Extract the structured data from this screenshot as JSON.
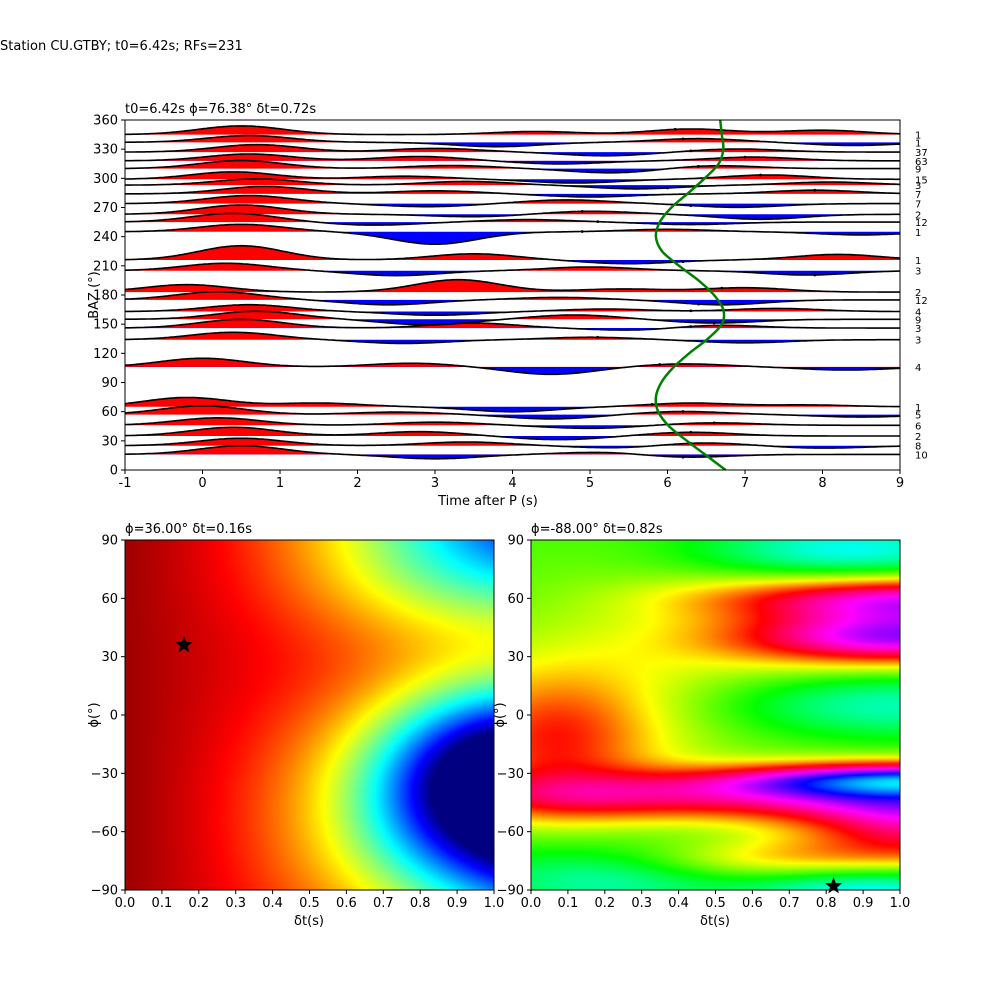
{
  "suptitle": "Station CU.GTBY; t0=6.42s; RFs=231",
  "chart_data": [
    {
      "type": "line",
      "panel": "receiver-functions",
      "title": "t0=6.42s ϕ=76.38° δt=0.72s",
      "xlabel": "Time after P (s)",
      "ylabel": "BAZ (°)",
      "xlim": [
        -1,
        9
      ],
      "ylim": [
        0,
        360
      ],
      "xticks": [
        "-1",
        "0",
        "1",
        "2",
        "3",
        "4",
        "5",
        "6",
        "7",
        "8",
        "9"
      ],
      "yticks": [
        "0",
        "30",
        "60",
        "90",
        "120",
        "150",
        "180",
        "210",
        "240",
        "270",
        "300",
        "330",
        "360"
      ],
      "positive_fill_color": "#ff0000",
      "negative_fill_color": "#0000ff",
      "curve_color": "#008000",
      "traces": [
        {
          "baz": 345,
          "count": "1",
          "peaks": [
            [
              0.5,
              14
            ],
            [
              4.3,
              5
            ],
            [
              6.3,
              9
            ],
            [
              8.0,
              7
            ]
          ],
          "dot_t": 6.1
        },
        {
          "baz": 337,
          "count": "1",
          "peaks": [
            [
              0.6,
              11
            ],
            [
              3.8,
              -7
            ],
            [
              6.4,
              6
            ],
            [
              8.4,
              -5
            ]
          ],
          "dot_t": 6.2
        },
        {
          "baz": 327,
          "count": "37",
          "peaks": [
            [
              0.7,
              12
            ],
            [
              3.0,
              6
            ],
            [
              5.2,
              -6
            ],
            [
              6.9,
              5
            ]
          ],
          "dot_t": 6.3
        },
        {
          "baz": 318,
          "count": "63",
          "peaks": [
            [
              0.6,
              11
            ],
            [
              2.8,
              7
            ],
            [
              4.6,
              -5
            ],
            [
              7.1,
              6
            ]
          ],
          "dot_t": 7.0
        },
        {
          "baz": 310,
          "count": "9",
          "peaks": [
            [
              0.5,
              13
            ],
            [
              3.2,
              5
            ],
            [
              5.3,
              -7
            ],
            [
              6.6,
              5
            ]
          ],
          "dot_t": 6.4
        },
        {
          "baz": 299,
          "count": "15",
          "peaks": [
            [
              0.4,
              12
            ],
            [
              2.6,
              5
            ],
            [
              4.8,
              -6
            ],
            [
              7.3,
              7
            ]
          ],
          "dot_t": 7.2
        },
        {
          "baz": 293,
          "count": "3",
          "peaks": [
            [
              0.7,
              10
            ],
            [
              3.4,
              6
            ],
            [
              5.6,
              -6
            ],
            [
              8.1,
              5
            ]
          ],
          "dot_t": 6.0
        },
        {
          "baz": 284,
          "count": "7",
          "peaks": [
            [
              0.8,
              12
            ],
            [
              3.0,
              5
            ],
            [
              5.0,
              -5
            ],
            [
              7.9,
              6
            ]
          ],
          "dot_t": 7.9
        },
        {
          "baz": 274,
          "count": "7",
          "peaks": [
            [
              0.6,
              13
            ],
            [
              2.9,
              -5
            ],
            [
              4.7,
              6
            ],
            [
              6.9,
              -6
            ]
          ],
          "dot_t": 6.3
        },
        {
          "baz": 263,
          "count": "2",
          "peaks": [
            [
              0.5,
              15
            ],
            [
              3.5,
              -4
            ],
            [
              5.0,
              5
            ],
            [
              7.2,
              -8
            ]
          ],
          "dot_t": 4.9
        },
        {
          "baz": 255,
          "count": "12",
          "peaks": [
            [
              0.4,
              14
            ],
            [
              2.2,
              -5
            ],
            [
              4.2,
              4
            ],
            [
              6.3,
              -4
            ]
          ],
          "dot_t": 5.1
        },
        {
          "baz": 245,
          "count": "1",
          "peaks": [
            [
              0.5,
              12
            ],
            [
              3.0,
              -20
            ],
            [
              6.0,
              4
            ],
            [
              8.5,
              -5
            ]
          ],
          "dot_t": 4.9
        },
        {
          "baz": 216,
          "count": "1",
          "peaks": [
            [
              0.5,
              23
            ],
            [
              3.5,
              10
            ],
            [
              5.5,
              -6
            ],
            [
              8.2,
              9
            ]
          ],
          "dot_t": 6.2
        },
        {
          "baz": 205,
          "count": "3",
          "peaks": [
            [
              0.3,
              12
            ],
            [
              2.5,
              -8
            ],
            [
              5.0,
              6
            ],
            [
              7.8,
              -7
            ]
          ],
          "dot_t": 7.9
        },
        {
          "baz": 183,
          "count": "2",
          "peaks": [
            [
              -0.2,
              12
            ],
            [
              3.3,
              20
            ],
            [
              5.4,
              5
            ],
            [
              7.0,
              7
            ]
          ],
          "dot_t": 6.7
        },
        {
          "baz": 175,
          "count": "12",
          "peaks": [
            [
              0.2,
              13
            ],
            [
              2.4,
              -8
            ],
            [
              4.6,
              4
            ],
            [
              6.7,
              -8
            ]
          ],
          "dot_t": 6.4
        },
        {
          "baz": 163,
          "count": "4",
          "peaks": [
            [
              0.6,
              11
            ],
            [
              3.0,
              -6
            ],
            [
              5.2,
              4
            ],
            [
              7.4,
              5
            ]
          ],
          "dot_t": 6.3
        },
        {
          "baz": 155,
          "count": "9",
          "peaks": [
            [
              0.7,
              13
            ],
            [
              2.9,
              -9
            ],
            [
              4.8,
              7
            ],
            [
              6.6,
              -6
            ]
          ],
          "dot_t": 6.6
        },
        {
          "baz": 146,
          "count": "3",
          "peaks": [
            [
              0.5,
              14
            ],
            [
              3.5,
              8
            ],
            [
              5.6,
              -4
            ],
            [
              6.6,
              5
            ]
          ],
          "dot_t": 6.3
        },
        {
          "baz": 134,
          "count": "3",
          "peaks": [
            [
              0.4,
              12
            ],
            [
              2.6,
              -6
            ],
            [
              5.0,
              4
            ],
            [
              7.0,
              -5
            ]
          ],
          "dot_t": 5.1
        },
        {
          "baz": 106,
          "count": "4",
          "peaks": [
            [
              0.0,
              14
            ],
            [
              2.7,
              6
            ],
            [
              4.5,
              -12
            ],
            [
              6.2,
              5
            ],
            [
              8.3,
              -5
            ]
          ],
          "dot_t": 5.9
        },
        {
          "baz": 65,
          "count": "1",
          "peaks": [
            [
              -0.2,
              15
            ],
            [
              1.5,
              6
            ],
            [
              4.0,
              -8
            ],
            [
              6.3,
              6
            ],
            [
              7.8,
              3
            ]
          ],
          "dot_t": 5.8
        },
        {
          "baz": 57,
          "count": "5",
          "peaks": [
            [
              0.0,
              14
            ],
            [
              2.5,
              4
            ],
            [
              4.5,
              -7
            ],
            [
              6.2,
              5
            ],
            [
              8.5,
              -4
            ]
          ],
          "dot_t": 6.2
        },
        {
          "baz": 46,
          "count": "6",
          "peaks": [
            [
              0.2,
              12
            ],
            [
              3.0,
              5
            ],
            [
              5.0,
              -5
            ],
            [
              6.6,
              4
            ]
          ],
          "dot_t": 6.6
        },
        {
          "baz": 35,
          "count": "2",
          "peaks": [
            [
              0.4,
              14
            ],
            [
              2.8,
              7
            ],
            [
              4.6,
              -6
            ],
            [
              6.3,
              6
            ]
          ],
          "dot_t": 6.3
        },
        {
          "baz": 25,
          "count": "8",
          "peaks": [
            [
              0.5,
              12
            ],
            [
              3.4,
              6
            ],
            [
              5.4,
              -4
            ],
            [
              6.4,
              5
            ],
            [
              8.0,
              -4
            ]
          ],
          "dot_t": 6.3
        },
        {
          "baz": 16,
          "count": "10",
          "peaks": [
            [
              0.5,
              14
            ],
            [
              3.0,
              -7
            ],
            [
              5.2,
              4
            ],
            [
              6.2,
              -5
            ]
          ],
          "dot_t": 6.2
        }
      ],
      "curve": {
        "baz": [
          0,
          15,
          30,
          45,
          60,
          75,
          90,
          105,
          120,
          135,
          150,
          165,
          180,
          195,
          210,
          225,
          240,
          255,
          270,
          285,
          300,
          315,
          330,
          345,
          360
        ],
        "t": [
          6.75,
          6.5,
          6.25,
          6.02,
          5.88,
          5.85,
          5.92,
          6.07,
          6.28,
          6.52,
          6.7,
          6.72,
          6.6,
          6.4,
          6.15,
          5.93,
          5.85,
          5.9,
          6.05,
          6.27,
          6.48,
          6.66,
          6.72,
          6.7,
          6.68
        ]
      }
    },
    {
      "type": "heatmap",
      "panel": "grid-search-left",
      "title": "ϕ=36.00° δt=0.16s",
      "xlabel": "δt(s)",
      "ylabel": "ϕ(°)",
      "xlim": [
        0,
        1
      ],
      "ylim": [
        -90,
        90
      ],
      "xticks": [
        "0.0",
        "0.1",
        "0.2",
        "0.3",
        "0.4",
        "0.5",
        "0.6",
        "0.7",
        "0.8",
        "0.9",
        "1.0"
      ],
      "yticks": [
        "−90",
        "−60",
        "−30",
        "0",
        "30",
        "60",
        "90"
      ],
      "colormap": "jet",
      "best": {
        "dt": 0.16,
        "phi": 36
      }
    },
    {
      "type": "heatmap",
      "panel": "grid-search-right",
      "title": "ϕ=-88.00° δt=0.82s",
      "xlabel": "δt(s)",
      "ylabel": "ϕ(°)",
      "xlim": [
        0,
        1
      ],
      "ylim": [
        -90,
        90
      ],
      "xticks": [
        "0.0",
        "0.1",
        "0.2",
        "0.3",
        "0.4",
        "0.5",
        "0.6",
        "0.7",
        "0.8",
        "0.9",
        "1.0"
      ],
      "yticks": [
        "−90",
        "−60",
        "−30",
        "0",
        "30",
        "60",
        "90"
      ],
      "colormap": "hsv",
      "best": {
        "dt": 0.82,
        "phi": -88
      }
    }
  ]
}
